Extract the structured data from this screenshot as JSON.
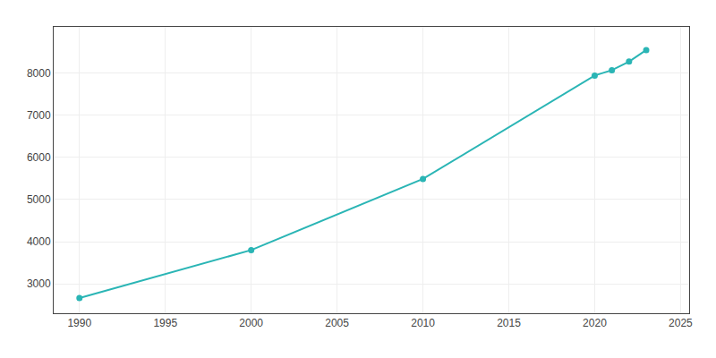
{
  "chart_data": {
    "type": "line",
    "x": [
      1990,
      2000,
      2010,
      2020,
      2021,
      2022,
      2023
    ],
    "values": [
      2660,
      3800,
      5490,
      7944,
      8072,
      8275,
      8549
    ],
    "color": "#2ab5b5",
    "marker": "circle",
    "xlim": [
      1988.5,
      2025.5
    ],
    "ylim": [
      2300,
      9100
    ],
    "xticks": [
      1990,
      1995,
      2000,
      2005,
      2010,
      2015,
      2020,
      2025
    ],
    "yticks": [
      3000,
      4000,
      5000,
      6000,
      7000,
      8000
    ],
    "grid": true
  }
}
